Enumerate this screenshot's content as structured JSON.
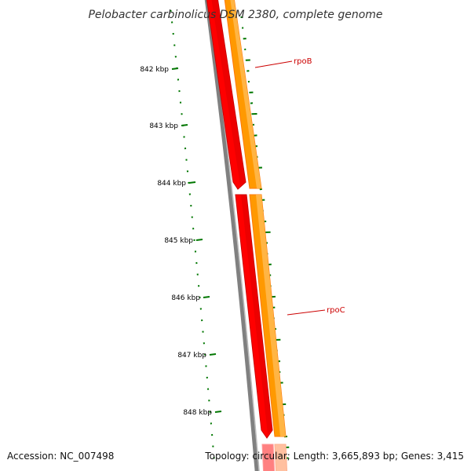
{
  "title": "Pelobacter carbinolicus DSM 2380, complete genome",
  "ruler_labels": [
    "842 kbp",
    "843 kbp",
    "844 kbp",
    "845 kbp",
    "846 kbp",
    "847 kbp",
    "848 kbp"
  ],
  "genes": [
    {
      "name": "rpoB",
      "label_color": "#cc0000"
    },
    {
      "name": "rpoC",
      "label_color": "#cc0000"
    }
  ],
  "colors": {
    "backbone": "#808080",
    "gene_track": "#ff0000",
    "cds_track": "#ff9900",
    "gc_track": "#007700",
    "label_line": "#cc0000"
  },
  "footer": {
    "accession": "Accession: NC_007498",
    "summary": "Topology: circular; Length: 3,665,893 bp; Genes: 3,415"
  }
}
